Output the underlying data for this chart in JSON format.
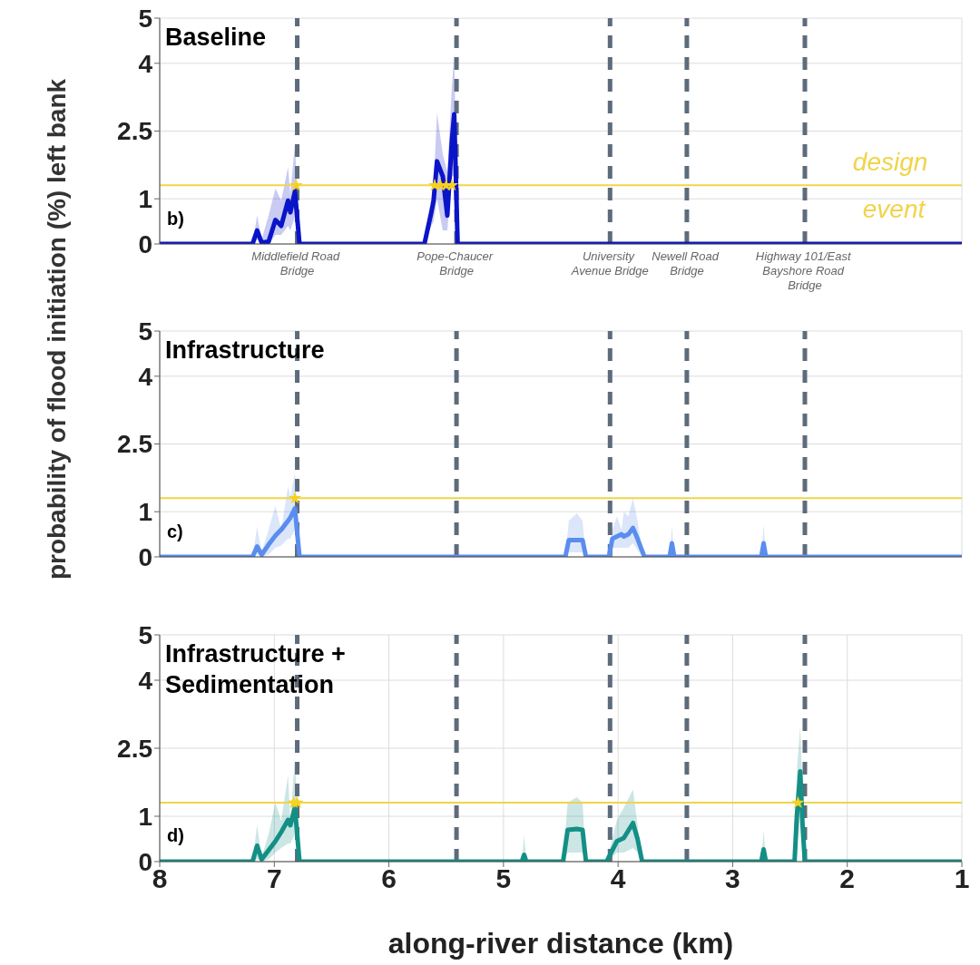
{
  "chart_data": [
    {
      "type": "line",
      "title": "Baseline",
      "annotations": [
        "b)"
      ],
      "xlim": [
        8,
        1
      ],
      "xticks": [
        8,
        7,
        6,
        5,
        4,
        3,
        2,
        1
      ],
      "ylim": [
        0,
        5
      ],
      "yticks": [
        0,
        1,
        2.5,
        4,
        5
      ],
      "grid": true,
      "tick_labels": "y",
      "ref_lines": [
        {
          "axis": "x",
          "value": 6.8,
          "label": "Middlefield Road Bridge",
          "color": "#5d6b7b",
          "line_style": "dashed"
        },
        {
          "axis": "x",
          "value": 5.41,
          "label": "Pope-Chaucer Bridge",
          "color": "#5d6b7b",
          "line_style": "dashed"
        },
        {
          "axis": "x",
          "value": 4.07,
          "label": "University Avenue Bridge",
          "color": "#5d6b7b",
          "line_style": "dashed"
        },
        {
          "axis": "x",
          "value": 3.4,
          "label": "Newell Road Bridge",
          "color": "#5d6b7b",
          "line_style": "dashed"
        },
        {
          "axis": "x",
          "value": 2.37,
          "label": "Highway 101/East Bayshore Road Bridge",
          "color": "#5d6b7b",
          "line_style": "dashed"
        },
        {
          "axis": "y",
          "value": 1.3,
          "label": "design event",
          "color": "#f0d44a",
          "line_style": "solid"
        }
      ],
      "series": [
        {
          "color": "#0a14c8",
          "x": [
            8,
            7.19,
            7.15,
            7.11,
            7.05,
            6.99,
            6.94,
            6.88,
            6.86,
            6.82,
            6.78,
            5.69,
            5.63,
            5.61,
            5.58,
            5.53,
            5.49,
            5.45,
            5.43,
            5.4,
            1
          ],
          "values": [
            0,
            0,
            0.3,
            0.03,
            0.05,
            0.53,
            0.4,
            0.96,
            0.7,
            1.16,
            0,
            0,
            0.7,
            0.96,
            1.83,
            1.5,
            0.63,
            2.3,
            2.87,
            0,
            0
          ],
          "lower": [
            0,
            0,
            0.1,
            0,
            0,
            0.2,
            0.2,
            0.4,
            0.3,
            0.6,
            0,
            0,
            0.4,
            0.5,
            1.0,
            0.3,
            0.3,
            1.5,
            1.5,
            0,
            0
          ],
          "upper": [
            0,
            0,
            0.63,
            0.1,
            0.63,
            1.23,
            0.96,
            1.7,
            1.1,
            2.23,
            0,
            0,
            0.9,
            1.3,
            2.9,
            2.0,
            1.6,
            3.5,
            4.2,
            0,
            0
          ]
        },
        {
          "type": "scatter",
          "marker": "star",
          "color": "#f5d21f",
          "x": [
            6.81,
            5.6,
            5.55,
            5.5,
            5.45
          ],
          "values": [
            1.3,
            1.3,
            1.3,
            1.3,
            1.3
          ]
        }
      ]
    },
    {
      "type": "line",
      "title": "Infrastructure",
      "annotations": [
        "c)"
      ],
      "ylabel": "probability of flood initiation (%) left bank",
      "xlim": [
        8,
        1
      ],
      "xticks": [
        8,
        7,
        6,
        5,
        4,
        3,
        2,
        1
      ],
      "ylim": [
        0,
        5
      ],
      "yticks": [
        0,
        1,
        2.5,
        4,
        5
      ],
      "grid": true,
      "tick_labels": "y",
      "ref_lines": [
        {
          "axis": "x",
          "value": 6.8,
          "color": "#5d6b7b",
          "line_style": "dashed"
        },
        {
          "axis": "x",
          "value": 5.41,
          "color": "#5d6b7b",
          "line_style": "dashed"
        },
        {
          "axis": "x",
          "value": 4.07,
          "color": "#5d6b7b",
          "line_style": "dashed"
        },
        {
          "axis": "x",
          "value": 3.4,
          "color": "#5d6b7b",
          "line_style": "dashed"
        },
        {
          "axis": "x",
          "value": 2.37,
          "color": "#5d6b7b",
          "line_style": "dashed"
        },
        {
          "axis": "y",
          "value": 1.3,
          "color": "#f0d44a",
          "line_style": "solid"
        }
      ],
      "series": [
        {
          "color": "#5b8def",
          "x": [
            8,
            7.19,
            7.15,
            7.11,
            7.05,
            6.99,
            6.94,
            6.88,
            6.86,
            6.82,
            6.78,
            4.46,
            4.43,
            4.36,
            4.31,
            4.28,
            4.08,
            4.05,
            4.01,
            3.97,
            3.95,
            3.91,
            3.87,
            3.83,
            3.8,
            3.77,
            3.55,
            3.53,
            3.51,
            2.75,
            2.73,
            2.71,
            1
          ],
          "values": [
            0,
            0,
            0.23,
            0.05,
            0.27,
            0.47,
            0.6,
            0.8,
            0.87,
            1.07,
            0,
            0,
            0.37,
            0.37,
            0.37,
            0,
            0,
            0.4,
            0.45,
            0.5,
            0.45,
            0.5,
            0.64,
            0.4,
            0.2,
            0,
            0,
            0.3,
            0,
            0,
            0.3,
            0,
            0
          ],
          "lower": [
            0,
            0,
            0.05,
            0,
            0.05,
            0.2,
            0.25,
            0.4,
            0.4,
            0.6,
            0,
            0,
            0.1,
            0.1,
            0.1,
            0,
            0,
            0.2,
            0.2,
            0.2,
            0.2,
            0.2,
            0.3,
            0.15,
            0.05,
            0,
            0,
            0.1,
            0,
            0,
            0.1,
            0,
            0
          ],
          "upper": [
            0,
            0,
            0.67,
            0.1,
            0.6,
            1.13,
            0.6,
            1.57,
            1.33,
            1.87,
            0,
            0,
            0.8,
            0.97,
            0.8,
            0,
            0,
            0.6,
            0.9,
            0.6,
            1.0,
            0.9,
            1.3,
            0.8,
            0.3,
            0,
            0,
            0.7,
            0,
            0,
            0.73,
            0,
            0
          ]
        },
        {
          "type": "scatter",
          "marker": "star",
          "color": "#f5d21f",
          "x": [
            6.82
          ],
          "values": [
            1.3
          ]
        }
      ]
    },
    {
      "type": "line",
      "title": "Infrastructure + Sedimentation",
      "annotations": [
        "d)"
      ],
      "xlabel": "along-river distance (km)",
      "xlim": [
        8,
        1
      ],
      "xticks": [
        8,
        7,
        6,
        5,
        4,
        3,
        2,
        1
      ],
      "ylim": [
        0,
        5
      ],
      "yticks": [
        0,
        1,
        2.5,
        4,
        5
      ],
      "grid": true,
      "ref_lines": [
        {
          "axis": "x",
          "value": 6.8,
          "color": "#5d6b7b",
          "line_style": "dashed"
        },
        {
          "axis": "x",
          "value": 5.41,
          "color": "#5d6b7b",
          "line_style": "dashed"
        },
        {
          "axis": "x",
          "value": 4.07,
          "color": "#5d6b7b",
          "line_style": "dashed"
        },
        {
          "axis": "x",
          "value": 3.4,
          "color": "#5d6b7b",
          "line_style": "dashed"
        },
        {
          "axis": "x",
          "value": 2.37,
          "color": "#5d6b7b",
          "line_style": "dashed"
        },
        {
          "axis": "y",
          "value": 1.3,
          "color": "#f0d44a",
          "line_style": "solid"
        }
      ],
      "series": [
        {
          "color": "#138f86",
          "x": [
            8,
            7.19,
            7.15,
            7.11,
            7.05,
            6.99,
            6.94,
            6.88,
            6.86,
            6.82,
            6.78,
            4.84,
            4.82,
            4.8,
            4.48,
            4.44,
            4.36,
            4.31,
            4.28,
            4.1,
            4.05,
            4.01,
            3.95,
            3.87,
            3.83,
            3.79,
            2.75,
            2.73,
            2.71,
            2.46,
            2.44,
            2.41,
            2.39,
            2.37,
            1
          ],
          "values": [
            0,
            0,
            0.35,
            0.05,
            0.25,
            0.45,
            0.65,
            0.92,
            0.8,
            1.19,
            0,
            0,
            0.15,
            0,
            0,
            0.7,
            0.72,
            0.7,
            0,
            0,
            0.25,
            0.45,
            0.52,
            0.85,
            0.5,
            0,
            0,
            0.27,
            0,
            0,
            1.0,
            1.99,
            0.8,
            0,
            0
          ],
          "lower": [
            0,
            0,
            0.05,
            0,
            0.05,
            0.2,
            0.3,
            0.4,
            0.4,
            0.6,
            0,
            0,
            0.05,
            0,
            0,
            0.2,
            0.2,
            0.2,
            0,
            0,
            0.1,
            0.2,
            0.2,
            0.3,
            0.2,
            0,
            0,
            0.1,
            0,
            0,
            0.4,
            1.0,
            0.4,
            0,
            0
          ],
          "upper": [
            0,
            0,
            0.8,
            0.1,
            0.6,
            1.3,
            0.9,
            1.9,
            0.9,
            2.3,
            0,
            0,
            0.59,
            0,
            0,
            1.3,
            1.42,
            1.3,
            0,
            0,
            0.5,
            0.92,
            1.19,
            1.59,
            0.8,
            0,
            0,
            0.69,
            0,
            0,
            2.0,
            2.99,
            1.5,
            0,
            0
          ]
        },
        {
          "type": "scatter",
          "marker": "star",
          "color": "#f5d21f",
          "x": [
            6.83,
            6.8,
            2.43
          ],
          "values": [
            1.3,
            1.3,
            1.3
          ]
        }
      ]
    }
  ]
}
